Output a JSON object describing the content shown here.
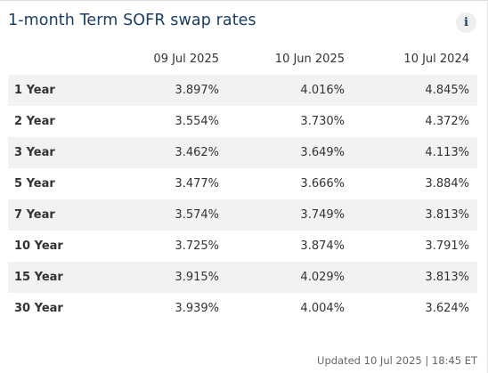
{
  "widget": {
    "title": "1-month Term SOFR swap rates",
    "info_icon_glyph": "i",
    "info_icon_name": "info-icon"
  },
  "table": {
    "headers": [
      "",
      "09 Jul 2025",
      "10 Jun 2025",
      "10 Jul 2024"
    ],
    "rows": [
      {
        "term": "1 Year",
        "values": [
          "3.897%",
          "4.016%",
          "4.845%"
        ]
      },
      {
        "term": "2 Year",
        "values": [
          "3.554%",
          "3.730%",
          "4.372%"
        ]
      },
      {
        "term": "3 Year",
        "values": [
          "3.462%",
          "3.649%",
          "4.113%"
        ]
      },
      {
        "term": "5 Year",
        "values": [
          "3.477%",
          "3.666%",
          "3.884%"
        ]
      },
      {
        "term": "7 Year",
        "values": [
          "3.574%",
          "3.749%",
          "3.813%"
        ]
      },
      {
        "term": "10 Year",
        "values": [
          "3.725%",
          "3.874%",
          "3.791%"
        ]
      },
      {
        "term": "15 Year",
        "values": [
          "3.915%",
          "4.029%",
          "3.813%"
        ]
      },
      {
        "term": "30 Year",
        "values": [
          "3.939%",
          "4.004%",
          "3.624%"
        ]
      }
    ]
  },
  "footer": {
    "updated": "Updated 10 Jul 2025 | 18:45 ET"
  },
  "colors": {
    "title": "#1a3e66",
    "row_stripe": "#f2f2f2",
    "text": "#333333",
    "muted": "#666666"
  }
}
